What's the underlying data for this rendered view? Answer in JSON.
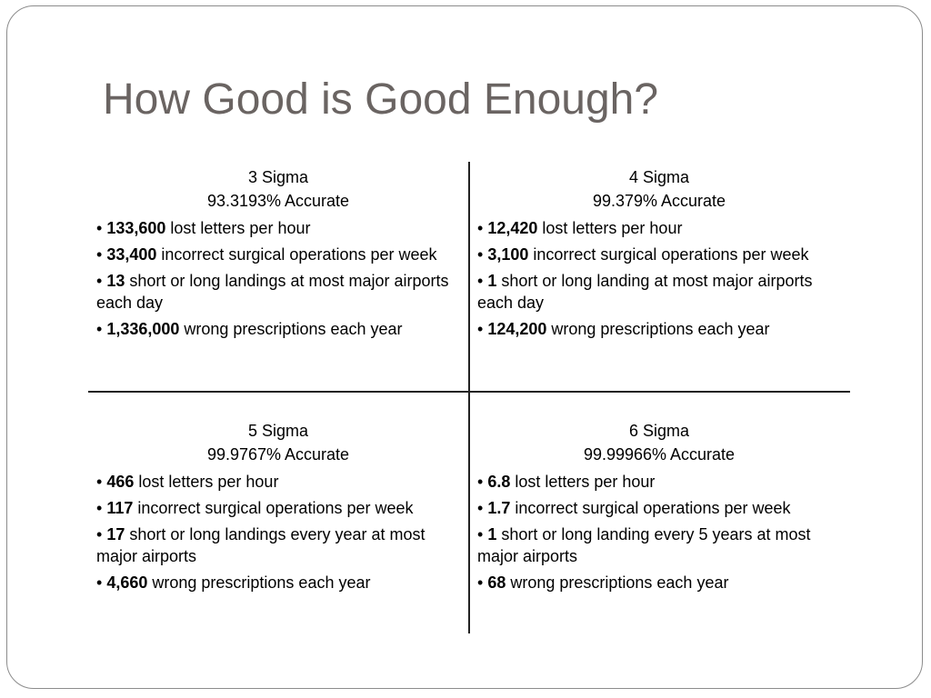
{
  "title": "How Good is Good Enough?",
  "quadrants": [
    {
      "name": "3 Sigma",
      "accuracy": "93.3193% Accurate",
      "items": [
        {
          "num": "133,600",
          "text": " lost letters per hour"
        },
        {
          "num": "33,400",
          "text": " incorrect surgical operations per week"
        },
        {
          "num": "13",
          "text": " short or long landings at most major airports each day"
        },
        {
          "num": "1,336,000",
          "text": " wrong prescriptions each year"
        }
      ]
    },
    {
      "name": "4 Sigma",
      "accuracy": "99.379% Accurate",
      "items": [
        {
          "num": "12,420",
          "text": " lost letters per hour"
        },
        {
          "num": "3,100",
          "text": " incorrect surgical operations per week"
        },
        {
          "num": "1",
          "text": " short or long landing at most major airports each day"
        },
        {
          "num": "124,200",
          "text": " wrong prescriptions each year"
        }
      ]
    },
    {
      "name": "5 Sigma",
      "accuracy": "99.9767% Accurate",
      "items": [
        {
          "num": "466",
          "text": " lost letters per hour"
        },
        {
          "num": "117",
          "text": " incorrect surgical operations per week"
        },
        {
          "num": "17",
          "text": " short or long landings every year at most major airports"
        },
        {
          "num": "4,660",
          "text": " wrong prescriptions each year"
        }
      ]
    },
    {
      "name": "6 Sigma",
      "accuracy": "99.99966% Accurate",
      "items": [
        {
          "num": "6.8",
          "text": " lost letters per hour"
        },
        {
          "num": "1.7",
          "text": " incorrect surgical operations per week"
        },
        {
          "num": "1",
          "text": " short or long landing every 5 years at most major airports"
        },
        {
          "num": "68",
          "text": " wrong prescriptions each year"
        }
      ]
    }
  ]
}
